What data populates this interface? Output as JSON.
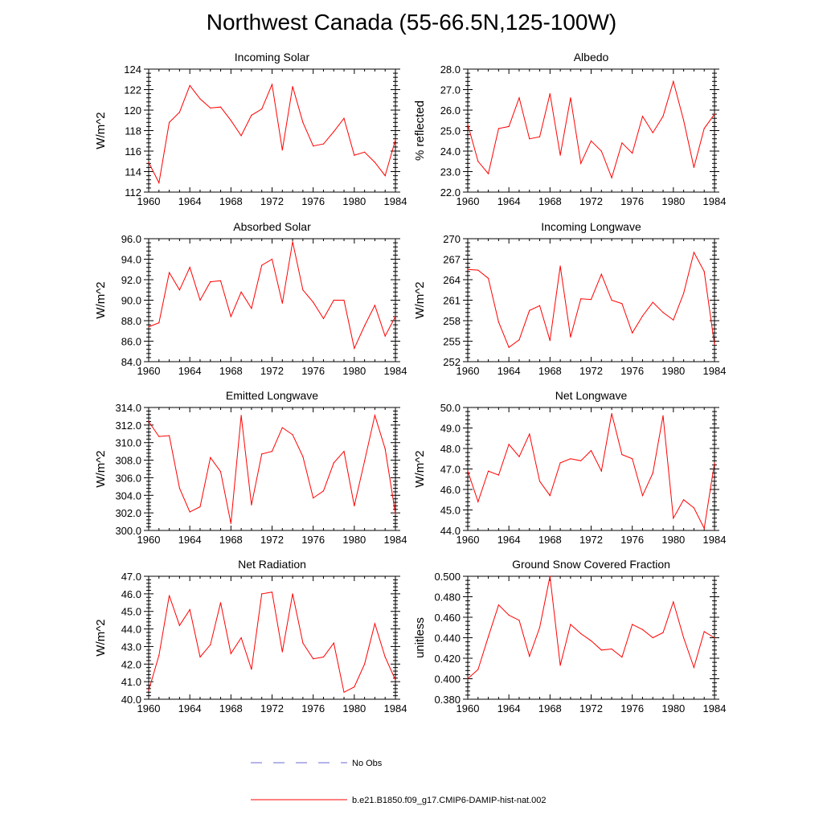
{
  "title": "Northwest Canada (55-66.5N,125-100W)",
  "colors": {
    "model": "#ff0000",
    "obs": "#6b6bd6",
    "axis": "#000000"
  },
  "legend": {
    "obs_label": "No Obs",
    "model_label": "b.e21.B1850.f09_g17.CMIP6-DAMIP-hist-nat.002"
  },
  "chart_data": [
    {
      "type": "line",
      "title": "Incoming Solar",
      "ylabel": "W/m^2",
      "xlim": [
        1960,
        1984
      ],
      "xticks": [
        1960,
        1964,
        1968,
        1972,
        1976,
        1980,
        1984
      ],
      "xtick_labels": [
        "1960",
        "1964",
        "1968",
        "1972",
        "1976",
        "1980",
        "1984"
      ],
      "ylim": [
        112,
        124
      ],
      "yticks": [
        112,
        114,
        116,
        118,
        120,
        122,
        124
      ],
      "ytick_labels": [
        "112",
        "114",
        "116",
        "118",
        "120",
        "122",
        "124"
      ],
      "x": [
        1960,
        1961,
        1962,
        1963,
        1964,
        1965,
        1966,
        1967,
        1968,
        1969,
        1970,
        1971,
        1972,
        1973,
        1974,
        1975,
        1976,
        1977,
        1978,
        1979,
        1980,
        1981,
        1982,
        1983,
        1984
      ],
      "series": [
        {
          "values": [
            114.9,
            112.9,
            118.8,
            119.8,
            122.4,
            121.1,
            120.2,
            120.3,
            119.0,
            117.5,
            119.5,
            120.1,
            122.5,
            116.1,
            122.3,
            118.8,
            116.5,
            116.7,
            117.9,
            119.2,
            115.6,
            115.9,
            114.9,
            113.6,
            117.1
          ]
        }
      ]
    },
    {
      "type": "line",
      "title": "Albedo",
      "ylabel": "% reflected",
      "xlim": [
        1960,
        1984
      ],
      "xticks": [
        1960,
        1964,
        1968,
        1972,
        1976,
        1980,
        1984
      ],
      "xtick_labels": [
        "1960",
        "1964",
        "1968",
        "1972",
        "1976",
        "1980",
        "1984"
      ],
      "ylim": [
        22,
        28
      ],
      "yticks": [
        22,
        23,
        24,
        25,
        26,
        27,
        28
      ],
      "ytick_labels": [
        "22.0",
        "23.0",
        "24.0",
        "25.0",
        "26.0",
        "27.0",
        "28.0"
      ],
      "x": [
        1960,
        1961,
        1962,
        1963,
        1964,
        1965,
        1966,
        1967,
        1968,
        1969,
        1970,
        1971,
        1972,
        1973,
        1974,
        1975,
        1976,
        1977,
        1978,
        1979,
        1980,
        1981,
        1982,
        1983,
        1984
      ],
      "series": [
        {
          "values": [
            25.3,
            23.5,
            22.9,
            25.1,
            25.2,
            26.6,
            24.6,
            24.7,
            26.8,
            23.8,
            26.6,
            23.4,
            24.5,
            24.0,
            22.7,
            24.4,
            23.9,
            25.7,
            24.9,
            25.7,
            27.4,
            25.5,
            23.2,
            25.1,
            25.8
          ]
        }
      ]
    },
    {
      "type": "line",
      "title": "Absorbed Solar",
      "ylabel": "W/m^2",
      "xlim": [
        1960,
        1984
      ],
      "xticks": [
        1960,
        1964,
        1968,
        1972,
        1976,
        1980,
        1984
      ],
      "xtick_labels": [
        "1960",
        "1964",
        "1968",
        "1972",
        "1976",
        "1980",
        "1984"
      ],
      "ylim": [
        84,
        96
      ],
      "yticks": [
        84,
        86,
        88,
        90,
        92,
        94,
        96
      ],
      "ytick_labels": [
        "84.0",
        "86.0",
        "88.0",
        "90.0",
        "92.0",
        "94.0",
        "96.0"
      ],
      "x": [
        1960,
        1961,
        1962,
        1963,
        1964,
        1965,
        1966,
        1967,
        1968,
        1969,
        1970,
        1971,
        1972,
        1973,
        1974,
        1975,
        1976,
        1977,
        1978,
        1979,
        1980,
        1981,
        1982,
        1983,
        1984
      ],
      "series": [
        {
          "values": [
            87.4,
            87.8,
            92.7,
            91.0,
            93.2,
            90.0,
            91.8,
            91.9,
            88.4,
            90.8,
            89.2,
            93.4,
            94.0,
            89.7,
            95.7,
            91.0,
            89.8,
            88.2,
            90.0,
            90.0,
            85.3,
            87.5,
            89.5,
            86.5,
            88.4
          ]
        }
      ]
    },
    {
      "type": "line",
      "title": "Incoming Longwave",
      "ylabel": "W/m^2",
      "xlim": [
        1960,
        1984
      ],
      "xticks": [
        1960,
        1964,
        1968,
        1972,
        1976,
        1980,
        1984
      ],
      "xtick_labels": [
        "1960",
        "1964",
        "1968",
        "1972",
        "1976",
        "1980",
        "1984"
      ],
      "ylim": [
        252,
        270
      ],
      "yticks": [
        252,
        255,
        258,
        261,
        264,
        267,
        270
      ],
      "ytick_labels": [
        "252",
        "255",
        "258",
        "261",
        "264",
        "267",
        "270"
      ],
      "x": [
        1960,
        1961,
        1962,
        1963,
        1964,
        1965,
        1966,
        1967,
        1968,
        1969,
        1970,
        1971,
        1972,
        1973,
        1974,
        1975,
        1976,
        1977,
        1978,
        1979,
        1980,
        1981,
        1982,
        1983,
        1984
      ],
      "series": [
        {
          "values": [
            265.5,
            265.4,
            264.2,
            257.8,
            254.1,
            255.2,
            259.5,
            260.2,
            255.1,
            266.0,
            255.6,
            261.2,
            261.1,
            264.8,
            261.0,
            260.5,
            256.2,
            258.7,
            260.7,
            259.2,
            258.1,
            262.0,
            268.0,
            265.2,
            254.5
          ]
        }
      ]
    },
    {
      "type": "line",
      "title": "Emitted Longwave",
      "ylabel": "W/m^2",
      "xlim": [
        1960,
        1984
      ],
      "xticks": [
        1960,
        1964,
        1968,
        1972,
        1976,
        1980,
        1984
      ],
      "xtick_labels": [
        "1960",
        "1964",
        "1968",
        "1972",
        "1976",
        "1980",
        "1984"
      ],
      "ylim": [
        300,
        314
      ],
      "yticks": [
        300,
        302,
        304,
        306,
        308,
        310,
        312,
        314
      ],
      "ytick_labels": [
        "300.0",
        "302.0",
        "304.0",
        "306.0",
        "308.0",
        "310.0",
        "312.0",
        "314.0"
      ],
      "x": [
        1960,
        1961,
        1962,
        1963,
        1964,
        1965,
        1966,
        1967,
        1968,
        1969,
        1970,
        1971,
        1972,
        1973,
        1974,
        1975,
        1976,
        1977,
        1978,
        1979,
        1980,
        1981,
        1982,
        1983,
        1984
      ],
      "series": [
        {
          "values": [
            312.4,
            310.7,
            310.8,
            304.8,
            302.1,
            302.7,
            308.3,
            306.7,
            300.8,
            313.1,
            302.9,
            308.7,
            309.0,
            311.7,
            310.9,
            308.4,
            303.7,
            304.5,
            307.7,
            309.0,
            302.8,
            307.9,
            313.1,
            309.3,
            301.9
          ]
        }
      ]
    },
    {
      "type": "line",
      "title": "Net Longwave",
      "ylabel": "W/m^2",
      "xlim": [
        1960,
        1984
      ],
      "xticks": [
        1960,
        1964,
        1968,
        1972,
        1976,
        1980,
        1984
      ],
      "xtick_labels": [
        "1960",
        "1964",
        "1968",
        "1972",
        "1976",
        "1980",
        "1984"
      ],
      "ylim": [
        44,
        50
      ],
      "yticks": [
        44,
        45,
        46,
        47,
        48,
        49,
        50
      ],
      "ytick_labels": [
        "44.0",
        "45.0",
        "46.0",
        "47.0",
        "48.0",
        "49.0",
        "50.0"
      ],
      "x": [
        1960,
        1961,
        1962,
        1963,
        1964,
        1965,
        1966,
        1967,
        1968,
        1969,
        1970,
        1971,
        1972,
        1973,
        1974,
        1975,
        1976,
        1977,
        1978,
        1979,
        1980,
        1981,
        1982,
        1983,
        1984
      ],
      "series": [
        {
          "values": [
            46.9,
            45.4,
            46.9,
            46.7,
            48.2,
            47.6,
            48.7,
            46.4,
            45.7,
            47.3,
            47.5,
            47.4,
            47.9,
            46.9,
            49.7,
            47.7,
            47.5,
            45.7,
            46.8,
            49.6,
            44.6,
            45.5,
            45.1,
            44.1,
            47.3
          ]
        }
      ]
    },
    {
      "type": "line",
      "title": "Net Radiation",
      "ylabel": "W/m^2",
      "xlim": [
        1960,
        1984
      ],
      "xticks": [
        1960,
        1964,
        1968,
        1972,
        1976,
        1980,
        1984
      ],
      "xtick_labels": [
        "1960",
        "1964",
        "1968",
        "1972",
        "1976",
        "1980",
        "1984"
      ],
      "ylim": [
        40,
        47
      ],
      "yticks": [
        40,
        41,
        42,
        43,
        44,
        45,
        46,
        47
      ],
      "ytick_labels": [
        "40.0",
        "41.0",
        "42.0",
        "43.0",
        "44.0",
        "45.0",
        "46.0",
        "47.0"
      ],
      "x": [
        1960,
        1961,
        1962,
        1963,
        1964,
        1965,
        1966,
        1967,
        1968,
        1969,
        1970,
        1971,
        1972,
        1973,
        1974,
        1975,
        1976,
        1977,
        1978,
        1979,
        1980,
        1981,
        1982,
        1983,
        1984
      ],
      "series": [
        {
          "values": [
            40.5,
            42.5,
            45.9,
            44.2,
            45.1,
            42.4,
            43.1,
            45.5,
            42.6,
            43.5,
            41.7,
            46.0,
            46.1,
            42.7,
            46.0,
            43.2,
            42.3,
            42.4,
            43.2,
            40.4,
            40.7,
            42.0,
            44.3,
            42.4,
            41.1
          ]
        }
      ]
    },
    {
      "type": "line",
      "title": "Ground Snow Covered Fraction",
      "ylabel": "unitless",
      "xlim": [
        1960,
        1984
      ],
      "xticks": [
        1960,
        1964,
        1968,
        1972,
        1976,
        1980,
        1984
      ],
      "xtick_labels": [
        "1960",
        "1964",
        "1968",
        "1972",
        "1976",
        "1980",
        "1984"
      ],
      "ylim": [
        0.38,
        0.5
      ],
      "yticks": [
        0.38,
        0.4,
        0.42,
        0.44,
        0.46,
        0.48,
        0.5
      ],
      "ytick_labels": [
        "0.380",
        "0.400",
        "0.420",
        "0.440",
        "0.460",
        "0.480",
        "0.500"
      ],
      "x": [
        1960,
        1961,
        1962,
        1963,
        1964,
        1965,
        1966,
        1967,
        1968,
        1969,
        1970,
        1971,
        1972,
        1973,
        1974,
        1975,
        1976,
        1977,
        1978,
        1979,
        1980,
        1981,
        1982,
        1983,
        1984
      ],
      "series": [
        {
          "values": [
            0.4,
            0.409,
            0.441,
            0.472,
            0.462,
            0.457,
            0.422,
            0.45,
            0.5,
            0.413,
            0.453,
            0.444,
            0.437,
            0.428,
            0.429,
            0.421,
            0.453,
            0.448,
            0.44,
            0.445,
            0.475,
            0.44,
            0.411,
            0.446,
            0.44
          ]
        }
      ]
    }
  ]
}
